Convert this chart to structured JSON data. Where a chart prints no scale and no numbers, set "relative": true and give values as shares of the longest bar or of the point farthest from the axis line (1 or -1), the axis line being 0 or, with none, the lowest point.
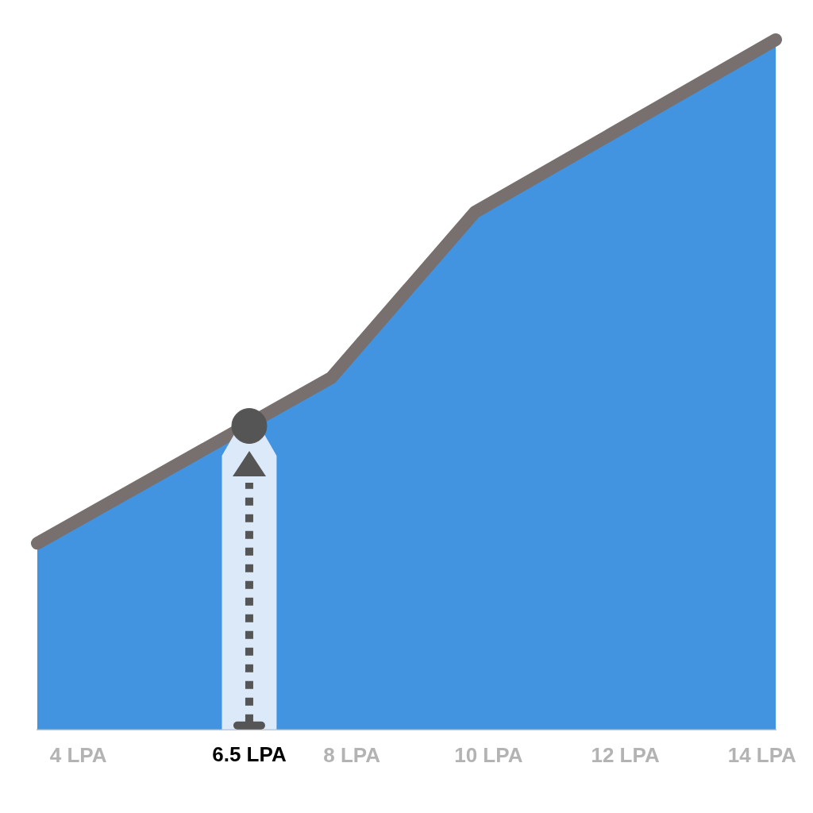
{
  "chart_data": {
    "type": "area",
    "relative": true,
    "x": [
      3.4,
      7.7,
      9.8,
      14.2
    ],
    "xlim": [
      3.4,
      14.2
    ],
    "xticks": [
      {
        "value": 4,
        "label": "4 LPA"
      },
      {
        "value": 8,
        "label": "8 LPA"
      },
      {
        "value": 10,
        "label": "10 LPA"
      },
      {
        "value": 12,
        "label": "12 LPA"
      },
      {
        "value": 14,
        "label": "14 LPA"
      }
    ],
    "series": [
      {
        "type": "area",
        "color": "#4293e0",
        "values": [
          0.27,
          0.51,
          0.75,
          1
        ]
      },
      {
        "type": "scatter",
        "x": [
          6.5
        ],
        "values": [
          0.44
        ],
        "color": "#555555",
        "marker": "circle"
      }
    ],
    "ref_lines": [
      {
        "axis": "x",
        "value": 6.5,
        "label": "6.5 LPA",
        "color": "#555555",
        "line_style": "dotted"
      }
    ],
    "bands": [
      {
        "axis": "x",
        "from": 6.1,
        "to": 6.9,
        "color": "#dbe9f8"
      }
    ],
    "grid": false,
    "legend": false,
    "marker": "none",
    "tick_labels": "x",
    "line_style": "solid"
  }
}
